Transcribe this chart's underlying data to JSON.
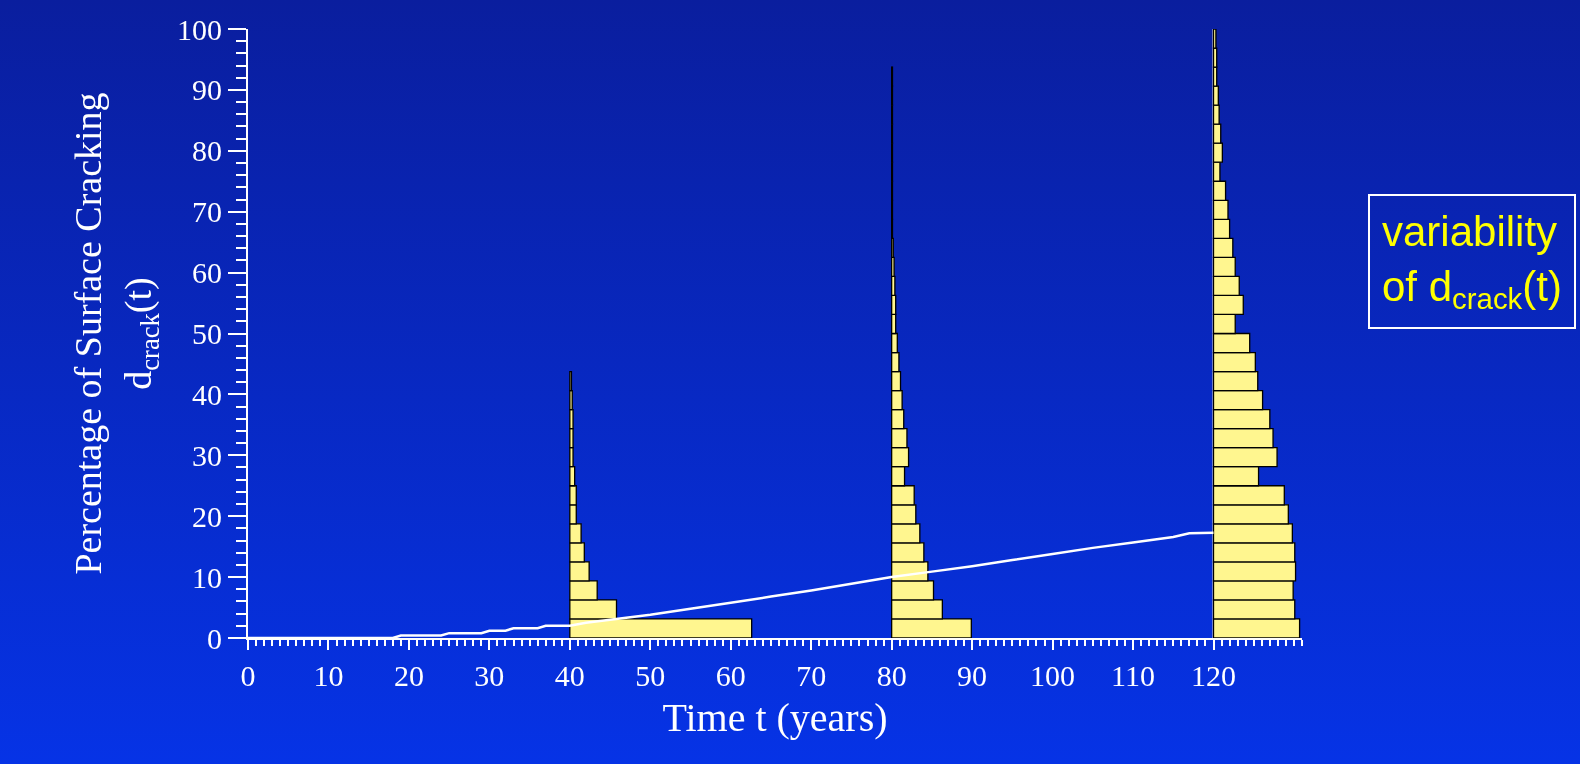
{
  "chart_data": {
    "type": "line",
    "orientation": "horizontal",
    "xlabel": "Time t (years)",
    "ylabel": "Percentage of Surface Cracking\nd$_{crack}$(t)",
    "annotations": [
      "variability\nof d$_{crack}$(t)"
    ],
    "series": [
      {
        "color": "#ffffff",
        "values": [
          0,
          18,
          19,
          24,
          25,
          29,
          30,
          32,
          33,
          36,
          37,
          40,
          42,
          45,
          50,
          55,
          60,
          65,
          70,
          75,
          80,
          85,
          90,
          95,
          100,
          105,
          110,
          115,
          117,
          120
        ],
        "x": [
          0,
          0,
          0.4,
          0.4,
          0.8,
          0.8,
          1.2,
          1.2,
          1.6,
          1.6,
          2.0,
          2.0,
          2.5,
          3.0,
          3.8,
          4.8,
          5.8,
          6.8,
          7.8,
          8.9,
          10.0,
          10.9,
          11.8,
          12.8,
          13.8,
          14.8,
          15.7,
          16.6,
          17.2,
          17.3
        ]
      },
      {
        "type": "histogram",
        "color": "#fff68f",
        "bins": [
          0,
          3.125,
          6.25,
          9.375,
          12.5,
          15.625,
          18.75,
          21.875,
          25,
          28.125,
          31.25,
          34.375,
          37.5,
          40.625,
          43.75
        ],
        "values": [
          22.6,
          5.8,
          3.4,
          2.4,
          1.8,
          1.4,
          0.8,
          0.8,
          0.6,
          0.4,
          0.4,
          0.4,
          0.3,
          0.2
        ],
        "base": [
          40,
          40,
          40,
          40,
          40,
          40,
          40,
          40,
          40,
          40,
          40,
          40,
          40,
          40
        ]
      },
      {
        "type": "histogram",
        "color": "#fff68f",
        "bins": [
          0,
          3.125,
          6.25,
          9.375,
          12.5,
          15.625,
          18.75,
          21.875,
          25,
          28.125,
          31.25,
          34.375,
          37.5,
          40.625,
          43.75,
          46.875,
          50,
          53.125,
          56.25,
          59.375,
          62.5,
          65.625,
          68.75,
          71.875,
          75,
          78.125,
          81.25,
          84.375,
          87.5,
          90.625,
          93.75
        ],
        "values": [
          9.9,
          6.3,
          5.2,
          4.5,
          4.0,
          3.5,
          3.0,
          2.8,
          1.6,
          2.1,
          1.9,
          1.5,
          1.3,
          1.1,
          0.9,
          0.7,
          0.5,
          0.5,
          0.4,
          0.3,
          0.2,
          0.1,
          0.1,
          0.1,
          0.1,
          0.1,
          0.1,
          0.1,
          0.1,
          0.1
        ],
        "base": [
          80,
          80,
          80,
          80,
          80,
          80,
          80,
          80,
          80,
          80,
          80,
          80,
          80,
          80,
          80,
          80,
          80,
          80,
          80,
          80,
          80,
          80,
          80,
          80,
          80,
          80,
          80,
          80,
          80,
          80
        ]
      },
      {
        "type": "histogram",
        "color": "#fff68f",
        "bins": [
          0,
          3.125,
          6.25,
          9.375,
          12.5,
          15.625,
          18.75,
          21.875,
          25,
          28.125,
          31.25,
          34.375,
          37.5,
          40.625,
          43.75,
          46.875,
          50,
          53.125,
          56.25,
          59.375,
          62.5,
          65.625,
          68.75,
          71.875,
          75,
          78.125,
          81.25,
          84.375,
          87.5,
          90.625,
          93.75,
          96.875,
          100
        ],
        "values": [
          10.7,
          10.1,
          9.9,
          10.2,
          10.1,
          9.8,
          9.3,
          8.8,
          5.6,
          7.9,
          7.4,
          7.0,
          6.1,
          5.5,
          5.2,
          4.5,
          2.7,
          3.7,
          3.2,
          2.7,
          2.4,
          2.0,
          1.8,
          1.5,
          0.8,
          1.1,
          0.9,
          0.7,
          0.6,
          0.4,
          0.4,
          0.3
        ],
        "base": [
          120,
          120,
          120,
          120,
          120,
          120,
          120,
          120,
          120,
          120,
          120,
          120,
          120,
          120,
          120,
          120,
          120,
          120,
          120,
          120,
          120,
          120,
          120,
          120,
          120,
          120,
          120,
          120,
          120,
          120,
          120,
          120
        ]
      }
    ],
    "xlim": [
      0,
      131
    ],
    "xticks": [
      0,
      10,
      20,
      30,
      40,
      50,
      60,
      70,
      80,
      90,
      100,
      110,
      120
    ],
    "ylim": [
      0,
      100
    ],
    "yticks": [
      0,
      10,
      20,
      30,
      40,
      50,
      60,
      70,
      80,
      90,
      100
    ],
    "ref_lines": [
      {
        "axis": "x",
        "value": 120,
        "color": "#ffffff"
      }
    ],
    "marker": "none",
    "line_style": "solid",
    "grid": false,
    "legend": false
  }
}
